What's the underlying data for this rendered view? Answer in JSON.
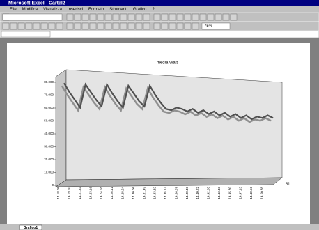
{
  "window": {
    "title": "Microsoft Excel - Cartel2",
    "menu": [
      "File",
      "Modifica",
      "Visualizza",
      "Inserisci",
      "Formato",
      "Strumenti",
      "Grafico",
      "?"
    ],
    "zoom": "75%",
    "sheet_tab": "Grafico1"
  },
  "chart_data": {
    "type": "line",
    "title": "media Watt",
    "categories": [
      "14.18.08",
      null,
      "14.19.50",
      null,
      "14.21.33",
      null,
      "14.23.16",
      null,
      "14.24.58",
      null,
      "14.26.41",
      null,
      "14.28.24",
      null,
      "14.30.06",
      null,
      "14.31.49",
      null,
      "14.33.32",
      null,
      "14.35.14",
      null,
      "14.36.57",
      null,
      "14.38.40",
      null,
      "14.40.22",
      null,
      "14.42.05",
      null,
      "14.43.48",
      null,
      "14.45.30",
      null,
      "14.47.13",
      null,
      "14.48.56",
      null,
      "14.50.38",
      null
    ],
    "series": [
      {
        "name": "S1",
        "color": "#505050",
        "values": [
          75000,
          68000,
          62000,
          56000,
          74000,
          68000,
          62000,
          57000,
          74000,
          67000,
          61000,
          56000,
          73000,
          67000,
          61000,
          57000,
          73000,
          66000,
          60000,
          55000,
          54000,
          56000,
          55000,
          53000,
          55000,
          52000,
          54000,
          51000,
          53000,
          50000,
          52000,
          49000,
          51000,
          48000,
          50000,
          47000,
          49000,
          48000,
          50000,
          48000
        ]
      }
    ],
    "ylim": [
      0,
      80000
    ],
    "yticks": [
      0,
      {
        "value": 10000,
        "label": "10.000"
      },
      {
        "value": 20000,
        "label": "20.000"
      },
      {
        "value": 30000,
        "label": "30.000"
      },
      {
        "value": 40000,
        "label": "40.000"
      },
      {
        "value": 50000,
        "label": "50.000"
      },
      {
        "value": 60000,
        "label": "60.000"
      },
      {
        "value": 70000,
        "label": "70.000"
      },
      {
        "value": 80000,
        "label": "80.000"
      }
    ]
  }
}
